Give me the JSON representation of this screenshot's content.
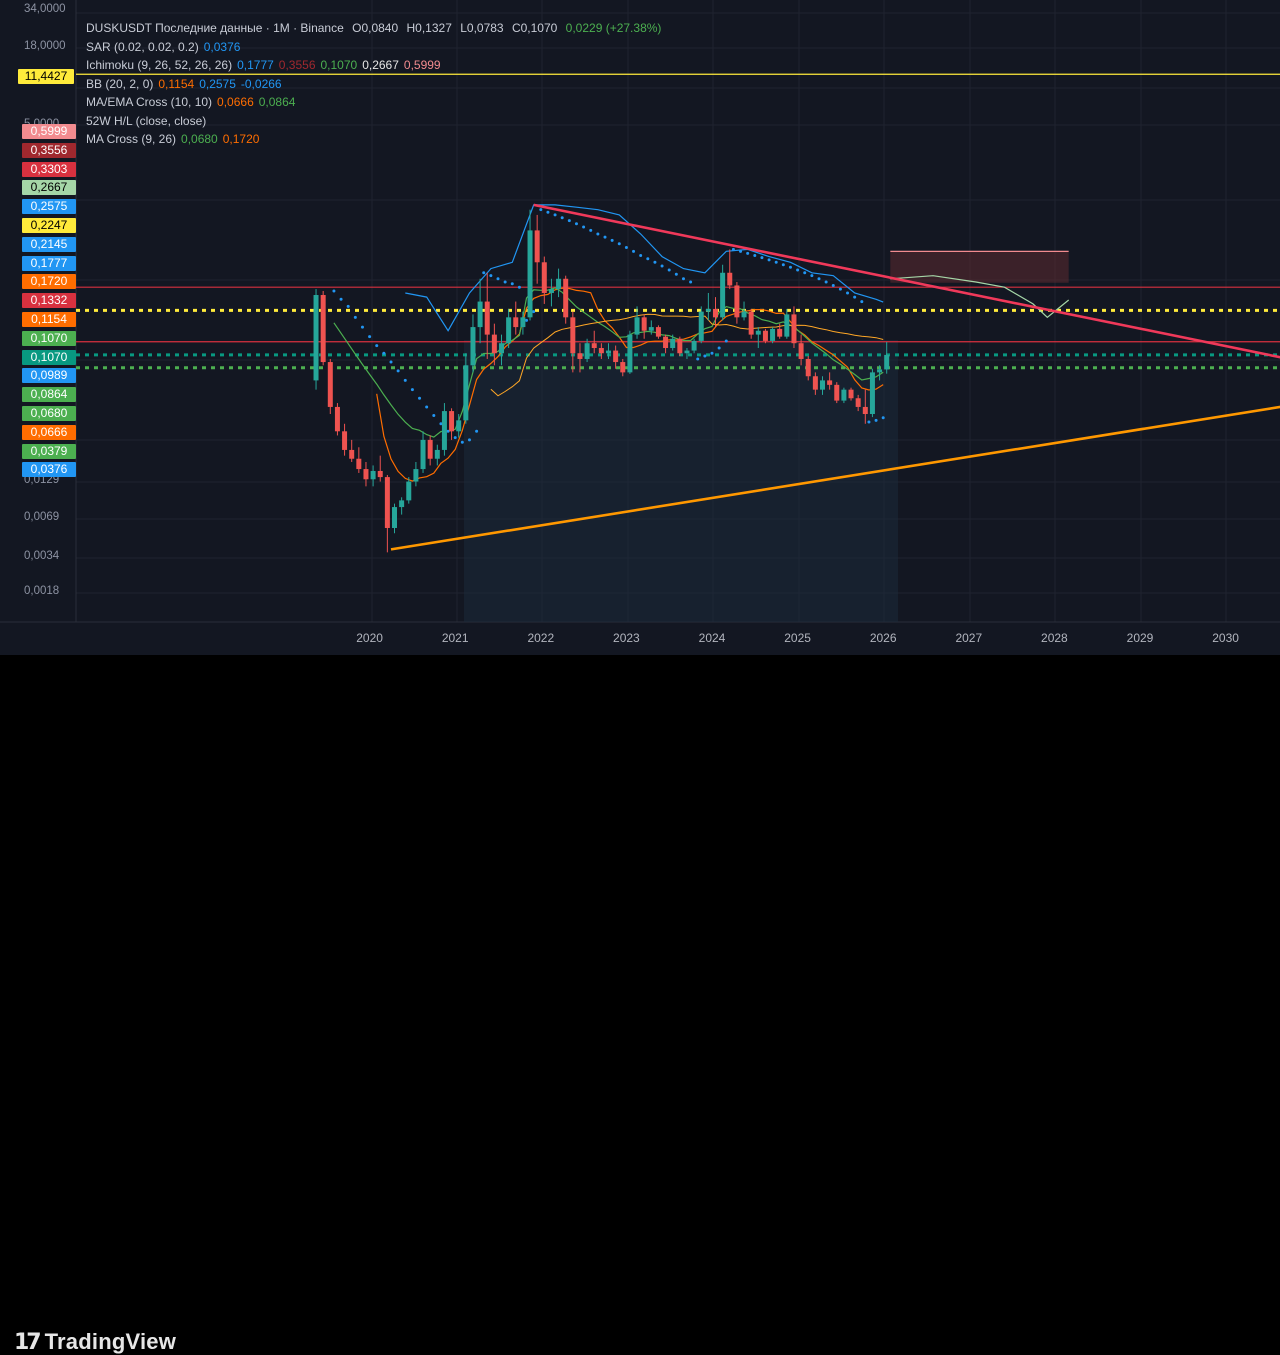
{
  "header": {
    "symbol_line": "DUSKUSDT Последние данные · 1M · Binance",
    "open": "O0,0840",
    "high": "H0,1327",
    "low": "L0,0783",
    "close": "C0,1070",
    "change": "0,0229 (+27.38%)"
  },
  "indicators": [
    {
      "name": "SAR (0.02, 0.02, 0.2)",
      "values": [
        {
          "v": "0,0376",
          "color": "#2196f3"
        }
      ]
    },
    {
      "name": "Ichimoku (9, 26, 52, 26, 26)",
      "values": [
        {
          "v": "0,1777",
          "color": "#2196f3"
        },
        {
          "v": "0,3556",
          "color": "#a0282e"
        },
        {
          "v": "0,1070",
          "color": "#4caf50"
        },
        {
          "v": "0,2667",
          "color": "#e6e6e6"
        },
        {
          "v": "0,5999",
          "color": "#f28b8f"
        }
      ]
    },
    {
      "name": "BB (20, 2, 0)",
      "values": [
        {
          "v": "0,1154",
          "color": "#ff6d00"
        },
        {
          "v": "0,2575",
          "color": "#2196f3"
        },
        {
          "v": "-0,0266",
          "color": "#2196f3"
        }
      ]
    },
    {
      "name": "MA/EMA Cross (10, 10)",
      "values": [
        {
          "v": "0,0666",
          "color": "#ff6d00"
        },
        {
          "v": "0,0864",
          "color": "#4caf50"
        }
      ]
    },
    {
      "name": "52W H/L (close, close)",
      "values": []
    },
    {
      "name": "MA Cross (9, 26)",
      "values": [
        {
          "v": "0,0680",
          "color": "#4caf50"
        },
        {
          "v": "0,1720",
          "color": "#ff6d00"
        }
      ]
    }
  ],
  "price_labels": [
    "34,0000",
    "18,0000",
    "5,0000",
    "0,0129",
    "0,0069",
    "0,0034",
    "0,0018"
  ],
  "hline_badge": {
    "text": "11,4427",
    "bg": "#ffeb3b",
    "color": "#000000"
  },
  "badges": [
    {
      "text": "0,5999",
      "bg": "#f28b8f"
    },
    {
      "text": "0,3556",
      "bg": "#a0282e"
    },
    {
      "text": "0,3303",
      "bg": "#d8313f"
    },
    {
      "text": "0,2667",
      "bg": "#a5d6a7",
      "color": "#000000"
    },
    {
      "text": "0,2575",
      "bg": "#2196f3"
    },
    {
      "text": "0,2247",
      "bg": "#ffeb3b",
      "color": "#000000"
    },
    {
      "text": "0,2145",
      "bg": "#2196f3"
    },
    {
      "text": "0,1777",
      "bg": "#2196f3"
    },
    {
      "text": "0,1720",
      "bg": "#ff6d00"
    },
    {
      "text": "0,1332",
      "bg": "#d8313f"
    },
    {
      "text": "0,1154",
      "bg": "#ff6d00"
    },
    {
      "text": "0,1070",
      "bg": "#4caf50"
    },
    {
      "text": "0,1070",
      "bg": "#089981"
    },
    {
      "text": "0,0989",
      "bg": "#2196f3"
    },
    {
      "text": "0,0864",
      "bg": "#4caf50"
    },
    {
      "text": "0,0680",
      "bg": "#4caf50"
    },
    {
      "text": "0,0666",
      "bg": "#ff6d00"
    },
    {
      "text": "0,0379",
      "bg": "#4caf50"
    },
    {
      "text": "0,0376",
      "bg": "#2196f3"
    }
  ],
  "x_ticks": [
    "2020",
    "2021",
    "2022",
    "2023",
    "2024",
    "2025",
    "2026",
    "2027",
    "2028",
    "2029",
    "2030"
  ],
  "brand": {
    "mark": "17",
    "name": "TradingView"
  },
  "chart_data": {
    "type": "candlestick",
    "interval": "1M",
    "x_range": [
      "2019-05",
      "2030-12"
    ],
    "y_scale": "log",
    "y_range": [
      0.0012,
      40
    ],
    "candles": [
      {
        "t": "2019-05",
        "o": 0.07,
        "h": 0.32,
        "l": 0.06,
        "c": 0.29
      },
      {
        "t": "2019-06",
        "o": 0.29,
        "h": 0.31,
        "l": 0.09,
        "c": 0.095
      },
      {
        "t": "2019-07",
        "o": 0.095,
        "h": 0.1,
        "l": 0.04,
        "c": 0.045
      },
      {
        "t": "2019-08",
        "o": 0.045,
        "h": 0.048,
        "l": 0.028,
        "c": 0.03
      },
      {
        "t": "2019-09",
        "o": 0.03,
        "h": 0.034,
        "l": 0.02,
        "c": 0.022
      },
      {
        "t": "2019-10",
        "o": 0.022,
        "h": 0.026,
        "l": 0.018,
        "c": 0.019
      },
      {
        "t": "2019-11",
        "o": 0.019,
        "h": 0.023,
        "l": 0.015,
        "c": 0.016
      },
      {
        "t": "2019-12",
        "o": 0.016,
        "h": 0.018,
        "l": 0.012,
        "c": 0.0135
      },
      {
        "t": "2020-01",
        "o": 0.0135,
        "h": 0.017,
        "l": 0.012,
        "c": 0.0155
      },
      {
        "t": "2020-02",
        "o": 0.0155,
        "h": 0.02,
        "l": 0.013,
        "c": 0.014
      },
      {
        "t": "2020-03",
        "o": 0.014,
        "h": 0.0145,
        "l": 0.004,
        "c": 0.006
      },
      {
        "t": "2020-04",
        "o": 0.006,
        "h": 0.009,
        "l": 0.0055,
        "c": 0.0085
      },
      {
        "t": "2020-05",
        "o": 0.0085,
        "h": 0.01,
        "l": 0.0075,
        "c": 0.0095
      },
      {
        "t": "2020-06",
        "o": 0.0095,
        "h": 0.014,
        "l": 0.009,
        "c": 0.013
      },
      {
        "t": "2020-07",
        "o": 0.013,
        "h": 0.018,
        "l": 0.012,
        "c": 0.016
      },
      {
        "t": "2020-08",
        "o": 0.016,
        "h": 0.03,
        "l": 0.015,
        "c": 0.026
      },
      {
        "t": "2020-09",
        "o": 0.026,
        "h": 0.028,
        "l": 0.017,
        "c": 0.019
      },
      {
        "t": "2020-10",
        "o": 0.019,
        "h": 0.024,
        "l": 0.017,
        "c": 0.022
      },
      {
        "t": "2020-11",
        "o": 0.022,
        "h": 0.048,
        "l": 0.02,
        "c": 0.042
      },
      {
        "t": "2020-12",
        "o": 0.042,
        "h": 0.044,
        "l": 0.026,
        "c": 0.03
      },
      {
        "t": "2021-01",
        "o": 0.03,
        "h": 0.04,
        "l": 0.027,
        "c": 0.036
      },
      {
        "t": "2021-02",
        "o": 0.036,
        "h": 0.11,
        "l": 0.034,
        "c": 0.09
      },
      {
        "t": "2021-03",
        "o": 0.09,
        "h": 0.21,
        "l": 0.08,
        "c": 0.17
      },
      {
        "t": "2021-04",
        "o": 0.17,
        "h": 0.38,
        "l": 0.13,
        "c": 0.26
      },
      {
        "t": "2021-05",
        "o": 0.26,
        "h": 0.42,
        "l": 0.1,
        "c": 0.15
      },
      {
        "t": "2021-06",
        "o": 0.15,
        "h": 0.18,
        "l": 0.09,
        "c": 0.11
      },
      {
        "t": "2021-07",
        "o": 0.11,
        "h": 0.15,
        "l": 0.09,
        "c": 0.13
      },
      {
        "t": "2021-08",
        "o": 0.13,
        "h": 0.23,
        "l": 0.12,
        "c": 0.2
      },
      {
        "t": "2021-09",
        "o": 0.2,
        "h": 0.26,
        "l": 0.15,
        "c": 0.17
      },
      {
        "t": "2021-10",
        "o": 0.17,
        "h": 0.22,
        "l": 0.15,
        "c": 0.2
      },
      {
        "t": "2021-11",
        "o": 0.2,
        "h": 1.2,
        "l": 0.19,
        "c": 0.85
      },
      {
        "t": "2021-12",
        "o": 0.85,
        "h": 1.1,
        "l": 0.35,
        "c": 0.5
      },
      {
        "t": "2022-01",
        "o": 0.5,
        "h": 0.55,
        "l": 0.25,
        "c": 0.3
      },
      {
        "t": "2022-02",
        "o": 0.3,
        "h": 0.38,
        "l": 0.24,
        "c": 0.32
      },
      {
        "t": "2022-03",
        "o": 0.32,
        "h": 0.45,
        "l": 0.28,
        "c": 0.38
      },
      {
        "t": "2022-04",
        "o": 0.38,
        "h": 0.4,
        "l": 0.18,
        "c": 0.2
      },
      {
        "t": "2022-05",
        "o": 0.2,
        "h": 0.22,
        "l": 0.08,
        "c": 0.11
      },
      {
        "t": "2022-06",
        "o": 0.11,
        "h": 0.13,
        "l": 0.08,
        "c": 0.1
      },
      {
        "t": "2022-07",
        "o": 0.1,
        "h": 0.14,
        "l": 0.095,
        "c": 0.13
      },
      {
        "t": "2022-08",
        "o": 0.13,
        "h": 0.16,
        "l": 0.11,
        "c": 0.12
      },
      {
        "t": "2022-09",
        "o": 0.12,
        "h": 0.13,
        "l": 0.1,
        "c": 0.11
      },
      {
        "t": "2022-10",
        "o": 0.11,
        "h": 0.13,
        "l": 0.1,
        "c": 0.115
      },
      {
        "t": "2022-11",
        "o": 0.115,
        "h": 0.125,
        "l": 0.085,
        "c": 0.095
      },
      {
        "t": "2022-12",
        "o": 0.095,
        "h": 0.1,
        "l": 0.075,
        "c": 0.08
      },
      {
        "t": "2023-01",
        "o": 0.08,
        "h": 0.16,
        "l": 0.078,
        "c": 0.15
      },
      {
        "t": "2023-02",
        "o": 0.15,
        "h": 0.24,
        "l": 0.14,
        "c": 0.2
      },
      {
        "t": "2023-03",
        "o": 0.2,
        "h": 0.21,
        "l": 0.14,
        "c": 0.16
      },
      {
        "t": "2023-04",
        "o": 0.16,
        "h": 0.19,
        "l": 0.15,
        "c": 0.17
      },
      {
        "t": "2023-05",
        "o": 0.17,
        "h": 0.175,
        "l": 0.14,
        "c": 0.145
      },
      {
        "t": "2023-06",
        "o": 0.145,
        "h": 0.15,
        "l": 0.11,
        "c": 0.12
      },
      {
        "t": "2023-07",
        "o": 0.12,
        "h": 0.15,
        "l": 0.115,
        "c": 0.14
      },
      {
        "t": "2023-08",
        "o": 0.14,
        "h": 0.145,
        "l": 0.105,
        "c": 0.11
      },
      {
        "t": "2023-09",
        "o": 0.11,
        "h": 0.12,
        "l": 0.1,
        "c": 0.115
      },
      {
        "t": "2023-10",
        "o": 0.115,
        "h": 0.14,
        "l": 0.11,
        "c": 0.135
      },
      {
        "t": "2023-11",
        "o": 0.135,
        "h": 0.24,
        "l": 0.13,
        "c": 0.22
      },
      {
        "t": "2023-12",
        "o": 0.22,
        "h": 0.3,
        "l": 0.19,
        "c": 0.23
      },
      {
        "t": "2024-01",
        "o": 0.23,
        "h": 0.28,
        "l": 0.17,
        "c": 0.2
      },
      {
        "t": "2024-02",
        "o": 0.2,
        "h": 0.48,
        "l": 0.19,
        "c": 0.42
      },
      {
        "t": "2024-03",
        "o": 0.42,
        "h": 0.62,
        "l": 0.32,
        "c": 0.34
      },
      {
        "t": "2024-04",
        "o": 0.34,
        "h": 0.36,
        "l": 0.18,
        "c": 0.2
      },
      {
        "t": "2024-05",
        "o": 0.2,
        "h": 0.26,
        "l": 0.19,
        "c": 0.22
      },
      {
        "t": "2024-06",
        "o": 0.22,
        "h": 0.23,
        "l": 0.14,
        "c": 0.15
      },
      {
        "t": "2024-07",
        "o": 0.15,
        "h": 0.17,
        "l": 0.12,
        "c": 0.16
      },
      {
        "t": "2024-08",
        "o": 0.16,
        "h": 0.165,
        "l": 0.13,
        "c": 0.135
      },
      {
        "t": "2024-09",
        "o": 0.135,
        "h": 0.17,
        "l": 0.13,
        "c": 0.165
      },
      {
        "t": "2024-10",
        "o": 0.165,
        "h": 0.18,
        "l": 0.14,
        "c": 0.145
      },
      {
        "t": "2024-11",
        "o": 0.145,
        "h": 0.23,
        "l": 0.14,
        "c": 0.21
      },
      {
        "t": "2024-12",
        "o": 0.21,
        "h": 0.24,
        "l": 0.12,
        "c": 0.13
      },
      {
        "t": "2025-01",
        "o": 0.13,
        "h": 0.15,
        "l": 0.09,
        "c": 0.1
      },
      {
        "t": "2025-02",
        "o": 0.1,
        "h": 0.105,
        "l": 0.07,
        "c": 0.075
      },
      {
        "t": "2025-03",
        "o": 0.075,
        "h": 0.08,
        "l": 0.055,
        "c": 0.06
      },
      {
        "t": "2025-04",
        "o": 0.06,
        "h": 0.075,
        "l": 0.055,
        "c": 0.07
      },
      {
        "t": "2025-05",
        "o": 0.07,
        "h": 0.08,
        "l": 0.06,
        "c": 0.065
      },
      {
        "t": "2025-06",
        "o": 0.065,
        "h": 0.068,
        "l": 0.048,
        "c": 0.05
      },
      {
        "t": "2025-07",
        "o": 0.05,
        "h": 0.062,
        "l": 0.048,
        "c": 0.06
      },
      {
        "t": "2025-08",
        "o": 0.06,
        "h": 0.062,
        "l": 0.05,
        "c": 0.052
      },
      {
        "t": "2025-09",
        "o": 0.052,
        "h": 0.055,
        "l": 0.042,
        "c": 0.045
      },
      {
        "t": "2025-10",
        "o": 0.045,
        "h": 0.06,
        "l": 0.034,
        "c": 0.04
      },
      {
        "t": "2025-11",
        "o": 0.04,
        "h": 0.085,
        "l": 0.038,
        "c": 0.08
      },
      {
        "t": "2025-12",
        "o": 0.08,
        "h": 0.09,
        "l": 0.07,
        "c": 0.084
      },
      {
        "t": "2026-01",
        "o": 0.084,
        "h": 0.1327,
        "l": 0.0783,
        "c": 0.107
      }
    ],
    "sar": [
      [
        "2019-08",
        0.31
      ],
      [
        "2019-09",
        0.27
      ],
      [
        "2019-10",
        0.24
      ],
      [
        "2019-11",
        0.2
      ],
      [
        "2019-12",
        0.17
      ],
      [
        "2020-01",
        0.145
      ],
      [
        "2020-02",
        0.125
      ],
      [
        "2020-03",
        0.11
      ],
      [
        "2020-04",
        0.095
      ],
      [
        "2020-05",
        0.082
      ],
      [
        "2020-06",
        0.07
      ],
      [
        "2020-07",
        0.06
      ],
      [
        "2020-08",
        0.052
      ],
      [
        "2020-09",
        0.045
      ],
      [
        "2020-10",
        0.039
      ],
      [
        "2020-11",
        0.034
      ],
      [
        "2020-12",
        0.03
      ],
      [
        "2021-01",
        0.027
      ],
      [
        "2021-02",
        0.025
      ],
      [
        "2021-03",
        0.026
      ],
      [
        "2021-04",
        0.03
      ],
      [
        "2021-05",
        0.42
      ],
      [
        "2021-06",
        0.4
      ],
      [
        "2021-07",
        0.38
      ],
      [
        "2021-08",
        0.36
      ],
      [
        "2021-09",
        0.35
      ],
      [
        "2021-10",
        0.33
      ],
      [
        "2021-11",
        0.19
      ],
      [
        "2021-12",
        0.22
      ],
      [
        "2022-01",
        1.2
      ],
      [
        "2022-02",
        1.15
      ],
      [
        "2022-03",
        1.1
      ],
      [
        "2022-04",
        1.05
      ],
      [
        "2022-05",
        1.0
      ],
      [
        "2022-06",
        0.95
      ],
      [
        "2022-07",
        0.9
      ],
      [
        "2022-08",
        0.85
      ],
      [
        "2022-09",
        0.8
      ],
      [
        "2022-10",
        0.76
      ],
      [
        "2022-11",
        0.72
      ],
      [
        "2022-12",
        0.68
      ],
      [
        "2023-01",
        0.64
      ],
      [
        "2023-02",
        0.6
      ],
      [
        "2023-03",
        0.56
      ],
      [
        "2023-04",
        0.53
      ],
      [
        "2023-05",
        0.5
      ],
      [
        "2023-06",
        0.47
      ],
      [
        "2023-07",
        0.44
      ],
      [
        "2023-08",
        0.41
      ],
      [
        "2023-09",
        0.38
      ],
      [
        "2023-10",
        0.36
      ],
      [
        "2023-11",
        0.1
      ],
      [
        "2023-12",
        0.105
      ],
      [
        "2024-01",
        0.11
      ],
      [
        "2024-02",
        0.12
      ],
      [
        "2024-03",
        0.135
      ],
      [
        "2024-04",
        0.62
      ],
      [
        "2024-05",
        0.6
      ],
      [
        "2024-06",
        0.58
      ],
      [
        "2024-07",
        0.56
      ],
      [
        "2024-08",
        0.54
      ],
      [
        "2024-09",
        0.52
      ],
      [
        "2024-10",
        0.5
      ],
      [
        "2024-11",
        0.48
      ],
      [
        "2024-12",
        0.46
      ],
      [
        "2025-01",
        0.44
      ],
      [
        "2025-02",
        0.42
      ],
      [
        "2025-03",
        0.4
      ],
      [
        "2025-04",
        0.38
      ],
      [
        "2025-05",
        0.36
      ],
      [
        "2025-06",
        0.34
      ],
      [
        "2025-07",
        0.32
      ],
      [
        "2025-08",
        0.3
      ],
      [
        "2025-09",
        0.28
      ],
      [
        "2025-10",
        0.26
      ],
      [
        "2025-11",
        0.035
      ],
      [
        "2025-12",
        0.036
      ],
      [
        "2026-01",
        0.0376
      ]
    ],
    "bb_upper": [
      [
        "2020-06",
        0.3
      ],
      [
        "2020-09",
        0.28
      ],
      [
        "2020-12",
        0.16
      ],
      [
        "2021-03",
        0.3
      ],
      [
        "2021-06",
        0.45
      ],
      [
        "2021-09",
        0.5
      ],
      [
        "2021-12",
        1.3
      ],
      [
        "2022-03",
        1.3
      ],
      [
        "2022-06",
        1.25
      ],
      [
        "2022-09",
        1.2
      ],
      [
        "2022-12",
        1.1
      ],
      [
        "2023-03",
        0.8
      ],
      [
        "2023-06",
        0.55
      ],
      [
        "2023-09",
        0.45
      ],
      [
        "2023-12",
        0.42
      ],
      [
        "2024-03",
        0.6
      ],
      [
        "2024-06",
        0.62
      ],
      [
        "2024-09",
        0.55
      ],
      [
        "2024-12",
        0.5
      ],
      [
        "2025-03",
        0.42
      ],
      [
        "2025-06",
        0.4
      ],
      [
        "2025-09",
        0.3
      ],
      [
        "2025-12",
        0.27
      ],
      [
        "2026-01",
        0.2575
      ]
    ],
    "ichimoku_cloud": {
      "x": [
        "2026-02",
        "2028-03"
      ],
      "top": 0.5999,
      "bottom": 0.3556
    },
    "lagging_span": [
      [
        "2026-02",
        0.38
      ],
      [
        "2026-08",
        0.4
      ],
      [
        "2027-02",
        0.36
      ],
      [
        "2027-06",
        0.33
      ],
      [
        "2027-10",
        0.25
      ],
      [
        "2027-12",
        0.2
      ],
      [
        "2028-01",
        0.22
      ],
      [
        "2028-03",
        0.2667
      ]
    ],
    "resistance_trendline": [
      [
        "2021-12",
        1.3
      ],
      [
        "2030-12",
        0.095
      ]
    ],
    "support_trendline": [
      [
        "2020-04",
        0.0042
      ],
      [
        "2030-12",
        0.048
      ]
    ],
    "hlines": [
      {
        "y": 11.4427,
        "color": "#ffeb3b",
        "style": "solid"
      },
      {
        "y": 0.2247,
        "color": "#ffeb3b",
        "style": "dotted"
      },
      {
        "y": 0.0864,
        "color": "#4caf50",
        "style": "dotted"
      },
      {
        "y": 0.3303,
        "color": "#d8313f",
        "style": "solid"
      },
      {
        "y": 0.1332,
        "color": "#d8313f",
        "style": "solid"
      },
      {
        "y": 0.107,
        "color": "#089981",
        "style": "dotted"
      }
    ]
  }
}
